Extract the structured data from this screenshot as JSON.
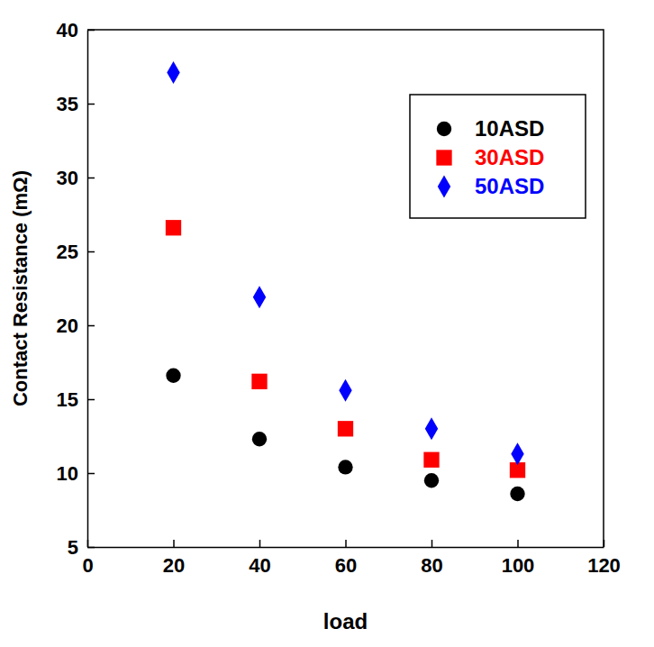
{
  "chart_data": {
    "type": "scatter",
    "x_label": "load",
    "y_label": "Contact Resistance (mΩ)",
    "x": [
      20,
      40,
      60,
      80,
      100
    ],
    "series": [
      {
        "name": "10ASD",
        "color": "#000000",
        "marker": "circle",
        "values": [
          16.6,
          12.3,
          10.4,
          9.5,
          8.6
        ]
      },
      {
        "name": "30ASD",
        "color": "#ff0000",
        "marker": "square",
        "values": [
          26.6,
          16.2,
          13.0,
          10.9,
          10.2
        ]
      },
      {
        "name": "50ASD",
        "color": "#0000ff",
        "marker": "diamond",
        "values": [
          37.1,
          21.9,
          15.6,
          13.0,
          11.3
        ]
      }
    ],
    "xlim": [
      0,
      120
    ],
    "xticks": [
      0,
      20,
      40,
      60,
      80,
      100,
      120
    ],
    "ylim": [
      5,
      40
    ],
    "yticks": [
      5,
      10,
      15,
      20,
      25,
      30,
      35,
      40
    ],
    "grid": false,
    "legend": "upper right"
  }
}
